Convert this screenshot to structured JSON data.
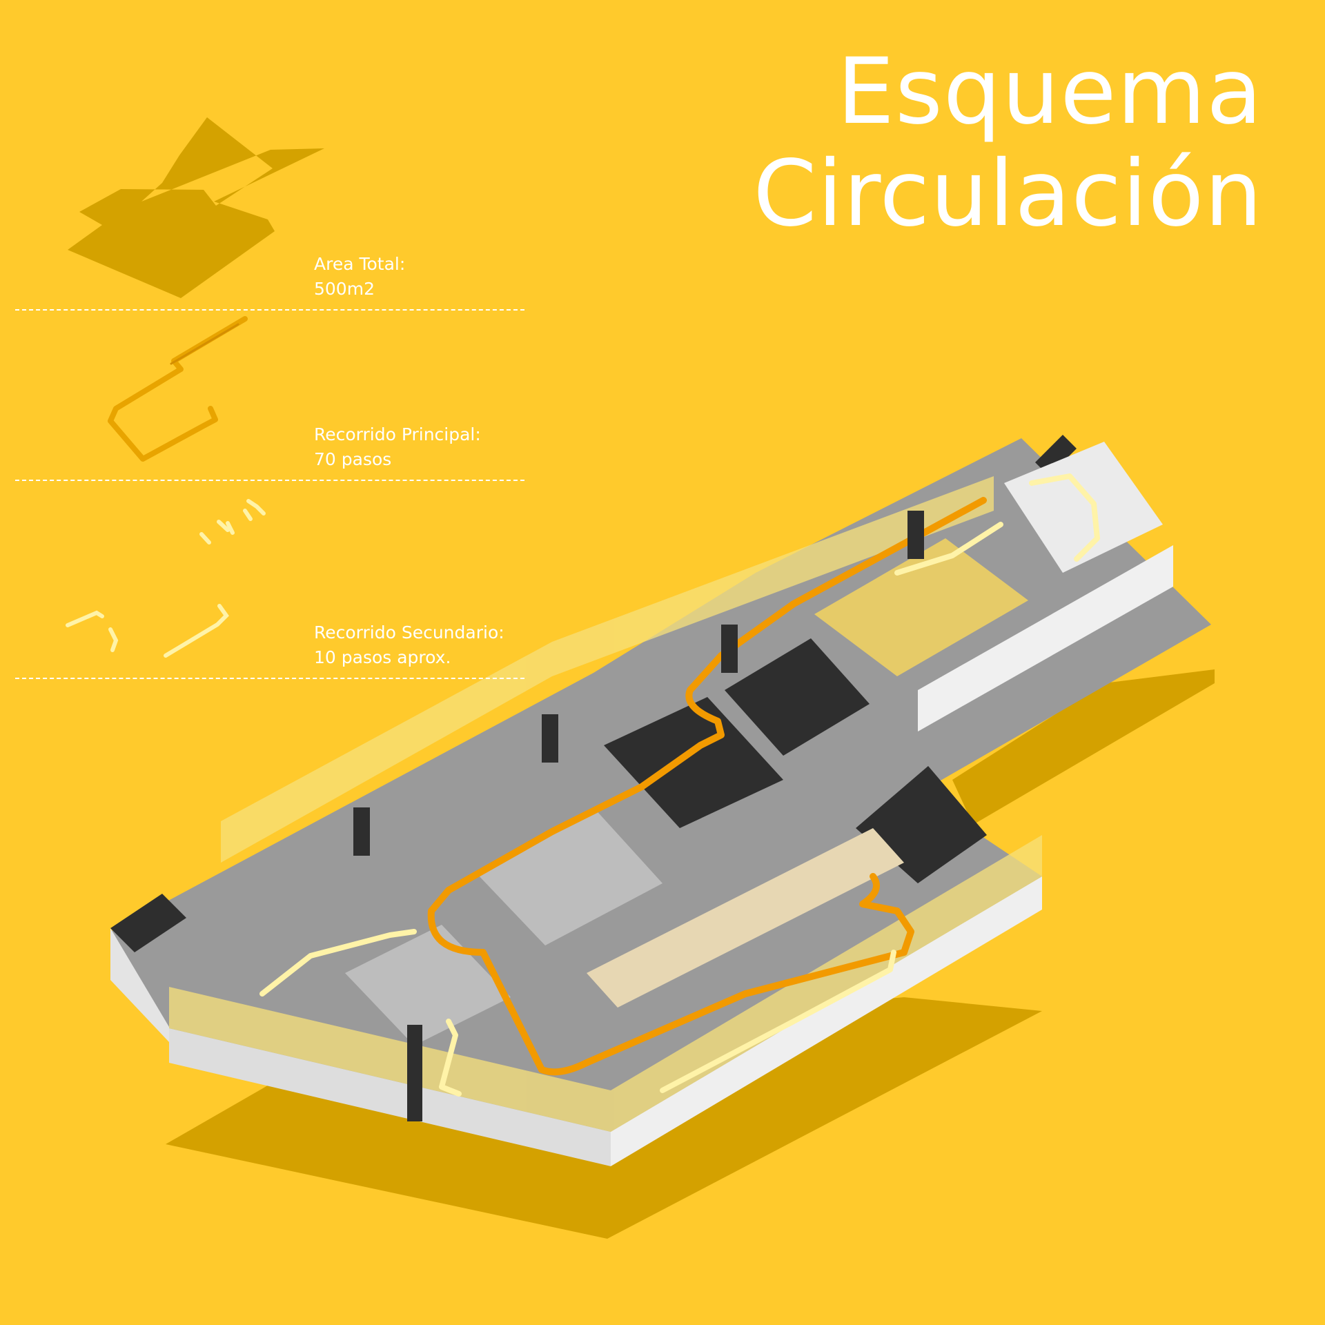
{
  "title": {
    "line1": "Esquema",
    "line2": "Circulación"
  },
  "legend": [
    {
      "label": "Area Total:",
      "value": "500m2"
    },
    {
      "label": "Recorrido Principal:",
      "value": "70 pasos"
    },
    {
      "label": "Recorrido Secundario:",
      "value": "10 pasos aprox."
    }
  ],
  "colors": {
    "background": "#FFCA2C",
    "shadow": "#D4A100",
    "area_silhouette": "#D4A200",
    "main_path": "#F29A00",
    "secondary_path": "#FFF3A8",
    "text": "#FFFFFF",
    "dark_block": "#2E2E2E",
    "floor": "#9B9B9B",
    "wall": "#E2E2E2"
  }
}
